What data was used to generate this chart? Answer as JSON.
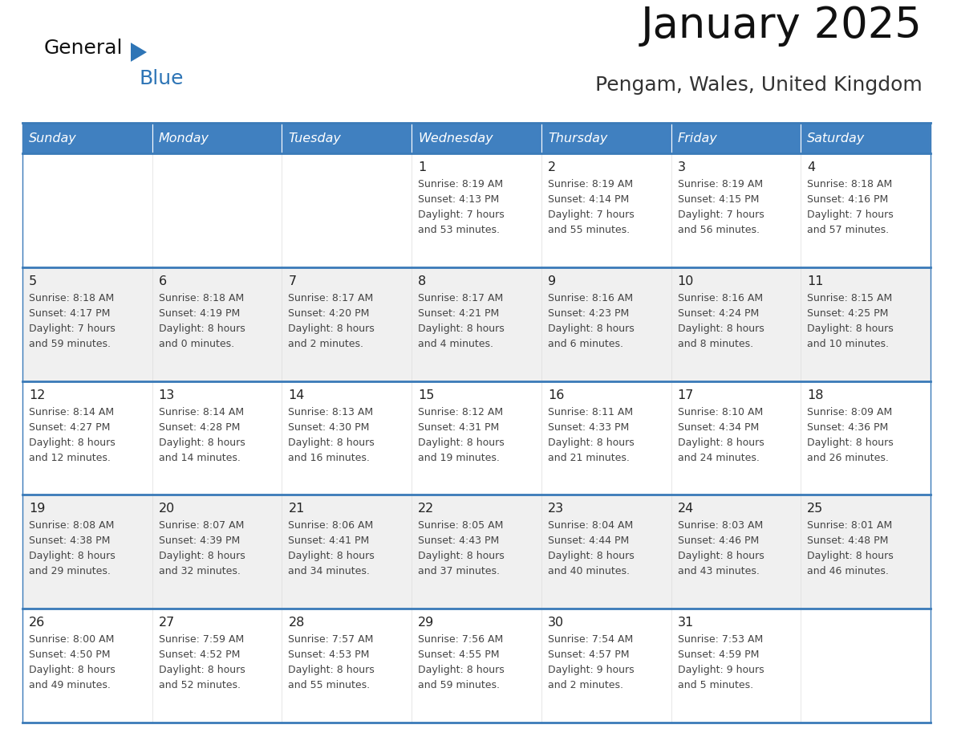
{
  "title": "January 2025",
  "subtitle": "Pengam, Wales, United Kingdom",
  "days_of_week": [
    "Sunday",
    "Monday",
    "Tuesday",
    "Wednesday",
    "Thursday",
    "Friday",
    "Saturday"
  ],
  "header_bg": "#4080C0",
  "header_text": "#FFFFFF",
  "row_bg_light": "#FFFFFF",
  "row_bg_gray": "#F0F0F0",
  "cell_text_color": "#444444",
  "day_number_color": "#222222",
  "border_color": "#3A7AB8",
  "title_color": "#111111",
  "subtitle_color": "#333333",
  "logo_general_color": "#111111",
  "logo_blue_color": "#2E75B6",
  "calendar": [
    [
      {
        "day": null,
        "sunrise": null,
        "sunset": null,
        "daylight": null
      },
      {
        "day": null,
        "sunrise": null,
        "sunset": null,
        "daylight": null
      },
      {
        "day": null,
        "sunrise": null,
        "sunset": null,
        "daylight": null
      },
      {
        "day": "1",
        "sunrise": "8:19 AM",
        "sunset": "4:13 PM",
        "daylight_line1": "Daylight: 7 hours",
        "daylight_line2": "and 53 minutes."
      },
      {
        "day": "2",
        "sunrise": "8:19 AM",
        "sunset": "4:14 PM",
        "daylight_line1": "Daylight: 7 hours",
        "daylight_line2": "and 55 minutes."
      },
      {
        "day": "3",
        "sunrise": "8:19 AM",
        "sunset": "4:15 PM",
        "daylight_line1": "Daylight: 7 hours",
        "daylight_line2": "and 56 minutes."
      },
      {
        "day": "4",
        "sunrise": "8:18 AM",
        "sunset": "4:16 PM",
        "daylight_line1": "Daylight: 7 hours",
        "daylight_line2": "and 57 minutes."
      }
    ],
    [
      {
        "day": "5",
        "sunrise": "8:18 AM",
        "sunset": "4:17 PM",
        "daylight_line1": "Daylight: 7 hours",
        "daylight_line2": "and 59 minutes."
      },
      {
        "day": "6",
        "sunrise": "8:18 AM",
        "sunset": "4:19 PM",
        "daylight_line1": "Daylight: 8 hours",
        "daylight_line2": "and 0 minutes."
      },
      {
        "day": "7",
        "sunrise": "8:17 AM",
        "sunset": "4:20 PM",
        "daylight_line1": "Daylight: 8 hours",
        "daylight_line2": "and 2 minutes."
      },
      {
        "day": "8",
        "sunrise": "8:17 AM",
        "sunset": "4:21 PM",
        "daylight_line1": "Daylight: 8 hours",
        "daylight_line2": "and 4 minutes."
      },
      {
        "day": "9",
        "sunrise": "8:16 AM",
        "sunset": "4:23 PM",
        "daylight_line1": "Daylight: 8 hours",
        "daylight_line2": "and 6 minutes."
      },
      {
        "day": "10",
        "sunrise": "8:16 AM",
        "sunset": "4:24 PM",
        "daylight_line1": "Daylight: 8 hours",
        "daylight_line2": "and 8 minutes."
      },
      {
        "day": "11",
        "sunrise": "8:15 AM",
        "sunset": "4:25 PM",
        "daylight_line1": "Daylight: 8 hours",
        "daylight_line2": "and 10 minutes."
      }
    ],
    [
      {
        "day": "12",
        "sunrise": "8:14 AM",
        "sunset": "4:27 PM",
        "daylight_line1": "Daylight: 8 hours",
        "daylight_line2": "and 12 minutes."
      },
      {
        "day": "13",
        "sunrise": "8:14 AM",
        "sunset": "4:28 PM",
        "daylight_line1": "Daylight: 8 hours",
        "daylight_line2": "and 14 minutes."
      },
      {
        "day": "14",
        "sunrise": "8:13 AM",
        "sunset": "4:30 PM",
        "daylight_line1": "Daylight: 8 hours",
        "daylight_line2": "and 16 minutes."
      },
      {
        "day": "15",
        "sunrise": "8:12 AM",
        "sunset": "4:31 PM",
        "daylight_line1": "Daylight: 8 hours",
        "daylight_line2": "and 19 minutes."
      },
      {
        "day": "16",
        "sunrise": "8:11 AM",
        "sunset": "4:33 PM",
        "daylight_line1": "Daylight: 8 hours",
        "daylight_line2": "and 21 minutes."
      },
      {
        "day": "17",
        "sunrise": "8:10 AM",
        "sunset": "4:34 PM",
        "daylight_line1": "Daylight: 8 hours",
        "daylight_line2": "and 24 minutes."
      },
      {
        "day": "18",
        "sunrise": "8:09 AM",
        "sunset": "4:36 PM",
        "daylight_line1": "Daylight: 8 hours",
        "daylight_line2": "and 26 minutes."
      }
    ],
    [
      {
        "day": "19",
        "sunrise": "8:08 AM",
        "sunset": "4:38 PM",
        "daylight_line1": "Daylight: 8 hours",
        "daylight_line2": "and 29 minutes."
      },
      {
        "day": "20",
        "sunrise": "8:07 AM",
        "sunset": "4:39 PM",
        "daylight_line1": "Daylight: 8 hours",
        "daylight_line2": "and 32 minutes."
      },
      {
        "day": "21",
        "sunrise": "8:06 AM",
        "sunset": "4:41 PM",
        "daylight_line1": "Daylight: 8 hours",
        "daylight_line2": "and 34 minutes."
      },
      {
        "day": "22",
        "sunrise": "8:05 AM",
        "sunset": "4:43 PM",
        "daylight_line1": "Daylight: 8 hours",
        "daylight_line2": "and 37 minutes."
      },
      {
        "day": "23",
        "sunrise": "8:04 AM",
        "sunset": "4:44 PM",
        "daylight_line1": "Daylight: 8 hours",
        "daylight_line2": "and 40 minutes."
      },
      {
        "day": "24",
        "sunrise": "8:03 AM",
        "sunset": "4:46 PM",
        "daylight_line1": "Daylight: 8 hours",
        "daylight_line2": "and 43 minutes."
      },
      {
        "day": "25",
        "sunrise": "8:01 AM",
        "sunset": "4:48 PM",
        "daylight_line1": "Daylight: 8 hours",
        "daylight_line2": "and 46 minutes."
      }
    ],
    [
      {
        "day": "26",
        "sunrise": "8:00 AM",
        "sunset": "4:50 PM",
        "daylight_line1": "Daylight: 8 hours",
        "daylight_line2": "and 49 minutes."
      },
      {
        "day": "27",
        "sunrise": "7:59 AM",
        "sunset": "4:52 PM",
        "daylight_line1": "Daylight: 8 hours",
        "daylight_line2": "and 52 minutes."
      },
      {
        "day": "28",
        "sunrise": "7:57 AM",
        "sunset": "4:53 PM",
        "daylight_line1": "Daylight: 8 hours",
        "daylight_line2": "and 55 minutes."
      },
      {
        "day": "29",
        "sunrise": "7:56 AM",
        "sunset": "4:55 PM",
        "daylight_line1": "Daylight: 8 hours",
        "daylight_line2": "and 59 minutes."
      },
      {
        "day": "30",
        "sunrise": "7:54 AM",
        "sunset": "4:57 PM",
        "daylight_line1": "Daylight: 9 hours",
        "daylight_line2": "and 2 minutes."
      },
      {
        "day": "31",
        "sunrise": "7:53 AM",
        "sunset": "4:59 PM",
        "daylight_line1": "Daylight: 9 hours",
        "daylight_line2": "and 5 minutes."
      },
      {
        "day": null,
        "sunrise": null,
        "sunset": null,
        "daylight_line1": null,
        "daylight_line2": null
      }
    ]
  ]
}
